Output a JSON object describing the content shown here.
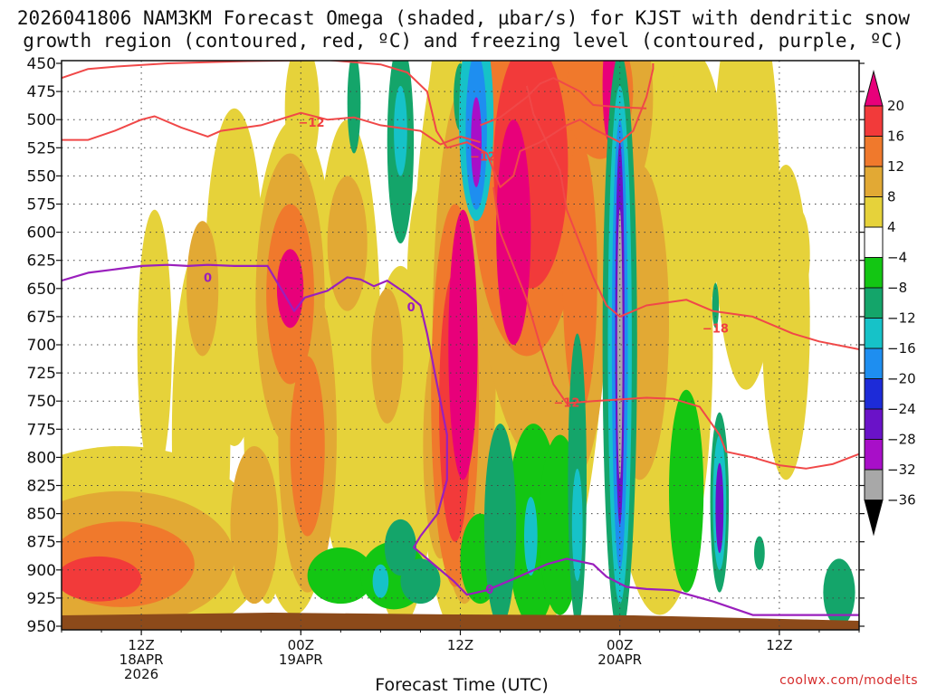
{
  "chart_data": {
    "type": "heatmap",
    "title_line1": "2026041806 NAM3KM Forecast Omega (shaded, µbar/s) for KJST with dendritic snow",
    "title_line2": "growth region (contoured, red, ºC) and freezing level (contoured, purple, ºC)",
    "xlabel": "Forecast Time (UTC)",
    "ylabel": "Pressure (hPa)",
    "credit": "coolwx.com/modelts",
    "y_ticks": [
      "450",
      "475",
      "500",
      "525",
      "550",
      "575",
      "600",
      "625",
      "650",
      "675",
      "700",
      "725",
      "750",
      "775",
      "800",
      "825",
      "850",
      "875",
      "900",
      "925",
      "950"
    ],
    "y_values": [
      450,
      475,
      500,
      525,
      550,
      575,
      600,
      625,
      650,
      675,
      700,
      725,
      750,
      775,
      800,
      825,
      850,
      875,
      900,
      925,
      950
    ],
    "x_range_hours": [
      6,
      66
    ],
    "x_ticks": [
      {
        "hour": 12,
        "label1": "12Z",
        "label2": "18APR",
        "label3": "2026"
      },
      {
        "hour": 24,
        "label1": "00Z",
        "label2": "19APR",
        "label3": ""
      },
      {
        "hour": 36,
        "label1": "12Z",
        "label2": "",
        "label3": ""
      },
      {
        "hour": 48,
        "label1": "00Z",
        "label2": "20APR",
        "label3": ""
      },
      {
        "hour": 60,
        "label1": "12Z",
        "label2": "",
        "label3": ""
      }
    ],
    "colorbar": {
      "labels": [
        "20",
        "16",
        "12",
        "8",
        "4",
        "−4",
        "−8",
        "−12",
        "−16",
        "−20",
        "−24",
        "−28",
        "−32",
        "−36"
      ],
      "colors": [
        "#e8007a",
        "#f23a3a",
        "#f0792c",
        "#e2a934",
        "#e6d23a",
        "#ffffff",
        "#13c613",
        "#14a56a",
        "#16c2c8",
        "#1e8ef0",
        "#1d2bd8",
        "#6a12c8",
        "#a80fc8",
        "#a8a8a8",
        "#000000"
      ]
    },
    "shading_blobs": [
      {
        "t": 8.8,
        "p": 908,
        "rt": 3.2,
        "rp": 20,
        "v": 16
      },
      {
        "t": 10.5,
        "p": 895,
        "rt": 5.5,
        "rp": 38,
        "v": 12
      },
      {
        "t": 10.5,
        "p": 890,
        "rt": 8.5,
        "rp": 60,
        "v": 8
      },
      {
        "t": 10.5,
        "p": 880,
        "rt": 11,
        "rp": 90,
        "v": 4
      },
      {
        "t": 13,
        "p": 700,
        "rt": 1.3,
        "rp": 120,
        "v": 4
      },
      {
        "t": 16.5,
        "p": 780,
        "rt": 2.2,
        "rp": 170,
        "v": 4
      },
      {
        "t": 16.6,
        "p": 650,
        "rt": 1.2,
        "rp": 60,
        "v": 8
      },
      {
        "t": 19,
        "p": 640,
        "rt": 2.2,
        "rp": 150,
        "v": 4
      },
      {
        "t": 20.5,
        "p": 860,
        "rt": 1.8,
        "rp": 70,
        "v": 8
      },
      {
        "t": 21.5,
        "p": 760,
        "rt": 1.8,
        "rp": 170,
        "v": 4
      },
      {
        "t": 23.2,
        "p": 655,
        "rt": 1.8,
        "rp": 80,
        "v": 12
      },
      {
        "t": 23.2,
        "p": 650,
        "rt": 1.0,
        "rp": 35,
        "v": 20
      },
      {
        "t": 23.2,
        "p": 660,
        "rt": 2.6,
        "rp": 130,
        "v": 8
      },
      {
        "t": 23.5,
        "p": 720,
        "rt": 3.5,
        "rp": 220,
        "v": 4
      },
      {
        "t": 24.1,
        "p": 490,
        "rt": 1.3,
        "rp": 60,
        "v": 4
      },
      {
        "t": 24.5,
        "p": 790,
        "rt": 1.3,
        "rp": 80,
        "v": 12
      },
      {
        "t": 24.5,
        "p": 780,
        "rt": 2.2,
        "rp": 140,
        "v": 8
      },
      {
        "t": 27.5,
        "p": 610,
        "rt": 1.5,
        "rp": 60,
        "v": 8
      },
      {
        "t": 27.5,
        "p": 700,
        "rt": 2.5,
        "rp": 200,
        "v": 4
      },
      {
        "t": 28.5,
        "p": 840,
        "rt": 2.0,
        "rp": 80,
        "v": 4
      },
      {
        "t": 31.5,
        "p": 790,
        "rt": 2.5,
        "rp": 160,
        "v": 4
      },
      {
        "t": 30.5,
        "p": 710,
        "rt": 1.2,
        "rp": 60,
        "v": 8
      },
      {
        "t": 33.5,
        "p": 640,
        "rt": 1.5,
        "rp": 90,
        "v": 4
      },
      {
        "t": 34.5,
        "p": 790,
        "rt": 1.3,
        "rp": 100,
        "v": 8
      },
      {
        "t": 35.6,
        "p": 755,
        "rt": 1.2,
        "rp": 120,
        "v": 16
      },
      {
        "t": 35.6,
        "p": 745,
        "rt": 1.8,
        "rp": 170,
        "v": 12
      },
      {
        "t": 36.2,
        "p": 700,
        "rt": 1.1,
        "rp": 120,
        "v": 20
      },
      {
        "t": 36.3,
        "p": 700,
        "rt": 2.4,
        "rp": 230,
        "v": 8
      },
      {
        "t": 36.0,
        "p": 680,
        "rt": 3.6,
        "rp": 280,
        "v": 4
      },
      {
        "t": 39.0,
        "p": 550,
        "rt": 2.0,
        "rp": 100,
        "v": 8
      },
      {
        "t": 40.0,
        "p": 600,
        "rt": 1.3,
        "rp": 100,
        "v": 20
      },
      {
        "t": 41.3,
        "p": 540,
        "rt": 2.8,
        "rp": 110,
        "v": 16
      },
      {
        "t": 41.0,
        "p": 540,
        "rt": 4.2,
        "rp": 170,
        "v": 12
      },
      {
        "t": 42.5,
        "p": 560,
        "rt": 5.5,
        "rp": 250,
        "v": 8
      },
      {
        "t": 40.0,
        "p": 620,
        "rt": 7.0,
        "rp": 360,
        "v": 4
      },
      {
        "t": 44.0,
        "p": 470,
        "rt": 3.5,
        "rp": 40,
        "v": 12
      },
      {
        "t": 46.5,
        "p": 475,
        "rt": 2.5,
        "rp": 60,
        "v": 12
      },
      {
        "t": 46.0,
        "p": 480,
        "rt": 4.5,
        "rp": 120,
        "v": 8
      },
      {
        "t": 47.0,
        "p": 480,
        "rt": 7.5,
        "rp": 220,
        "v": 4
      },
      {
        "t": 47.2,
        "p": 470,
        "rt": 0.5,
        "rp": 50,
        "v": 20
      },
      {
        "t": 45.0,
        "p": 640,
        "rt": 1.3,
        "rp": 120,
        "v": 12
      },
      {
        "t": 44.5,
        "p": 660,
        "rt": 2.5,
        "rp": 160,
        "v": 8
      },
      {
        "t": 49.5,
        "p": 680,
        "rt": 2.2,
        "rp": 140,
        "v": 8
      },
      {
        "t": 51.0,
        "p": 700,
        "rt": 4.0,
        "rp": 240,
        "v": 4
      },
      {
        "t": 53.5,
        "p": 560,
        "rt": 2.5,
        "rp": 120,
        "v": 4
      },
      {
        "t": 57.5,
        "p": 560,
        "rt": 2.5,
        "rp": 180,
        "v": 4
      },
      {
        "t": 60.5,
        "p": 680,
        "rt": 1.8,
        "rp": 140,
        "v": 4
      },
      {
        "t": 61.5,
        "p": 620,
        "rt": 0.8,
        "rp": 40,
        "v": 4
      },
      {
        "t": 38.5,
        "p": 830,
        "rt": 3.5,
        "rp": 90,
        "v": 4
      }
    ],
    "negative_blobs": [
      {
        "t": 27.0,
        "p": 905,
        "rt": 2.5,
        "rp": 25,
        "v": -4
      },
      {
        "t": 31.0,
        "p": 905,
        "rt": 2.5,
        "rp": 30,
        "v": -4
      },
      {
        "t": 30.0,
        "p": 910,
        "rt": 0.6,
        "rp": 15,
        "v": -12
      },
      {
        "t": 31.5,
        "p": 880,
        "rt": 1.2,
        "rp": 25,
        "v": -8
      },
      {
        "t": 33.0,
        "p": 910,
        "rt": 1.5,
        "rp": 20,
        "v": -8
      },
      {
        "t": 37.5,
        "p": 890,
        "rt": 1.5,
        "rp": 40,
        "v": -4
      },
      {
        "t": 39.0,
        "p": 860,
        "rt": 1.2,
        "rp": 90,
        "v": -8
      },
      {
        "t": 41.5,
        "p": 860,
        "rt": 2.0,
        "rp": 90,
        "v": -4
      },
      {
        "t": 41.3,
        "p": 870,
        "rt": 0.5,
        "rp": 35,
        "v": -12
      },
      {
        "t": 43.5,
        "p": 860,
        "rt": 1.6,
        "rp": 80,
        "v": -4
      },
      {
        "t": 44.8,
        "p": 820,
        "rt": 0.7,
        "rp": 130,
        "v": -8
      },
      {
        "t": 44.8,
        "p": 860,
        "rt": 0.4,
        "rp": 50,
        "v": -12
      },
      {
        "t": 48.0,
        "p": 700,
        "rt": 1.3,
        "rp": 260,
        "v": -8
      },
      {
        "t": 48.0,
        "p": 700,
        "rt": 0.9,
        "rp": 230,
        "v": -12
      },
      {
        "t": 48.0,
        "p": 700,
        "rt": 0.6,
        "rp": 200,
        "v": -16
      },
      {
        "t": 48.0,
        "p": 690,
        "rt": 0.35,
        "rp": 170,
        "v": -24
      },
      {
        "t": 48.0,
        "p": 700,
        "rt": 0.2,
        "rp": 120,
        "v": -32
      },
      {
        "t": 53.0,
        "p": 830,
        "rt": 1.3,
        "rp": 90,
        "v": -4
      },
      {
        "t": 55.5,
        "p": 840,
        "rt": 0.7,
        "rp": 80,
        "v": -8
      },
      {
        "t": 55.5,
        "p": 840,
        "rt": 0.5,
        "rp": 60,
        "v": -12
      },
      {
        "t": 55.5,
        "p": 845,
        "rt": 0.3,
        "rp": 40,
        "v": -24
      },
      {
        "t": 55.2,
        "p": 665,
        "rt": 0.25,
        "rp": 20,
        "v": -8
      },
      {
        "t": 58.5,
        "p": 885,
        "rt": 0.4,
        "rp": 15,
        "v": -8
      },
      {
        "t": 64.5,
        "p": 920,
        "rt": 1.2,
        "rp": 30,
        "v": -8
      },
      {
        "t": 31.5,
        "p": 520,
        "rt": 1.0,
        "rp": 90,
        "v": -8
      },
      {
        "t": 31.5,
        "p": 510,
        "rt": 0.5,
        "rp": 40,
        "v": -12
      },
      {
        "t": 28.0,
        "p": 485,
        "rt": 0.5,
        "rp": 45,
        "v": -8
      },
      {
        "t": 37.2,
        "p": 500,
        "rt": 1.3,
        "rp": 90,
        "v": -12
      },
      {
        "t": 37.2,
        "p": 510,
        "rt": 0.8,
        "rp": 70,
        "v": -16
      },
      {
        "t": 37.2,
        "p": 520,
        "rt": 0.4,
        "rp": 40,
        "v": -28
      },
      {
        "t": 36.0,
        "p": 480,
        "rt": 0.5,
        "rp": 30,
        "v": -8
      }
    ],
    "contour_labels": [
      {
        "text": "−12",
        "t": 24.8,
        "p": 503,
        "color": "#f04040"
      },
      {
        "text": "−12",
        "t": 37.7,
        "p": 533,
        "color": "#f04040"
      },
      {
        "text": "−18",
        "t": 55.2,
        "p": 686,
        "color": "#f04040"
      },
      {
        "text": "−12",
        "t": 44.0,
        "p": 752,
        "color": "#f04040"
      },
      {
        "text": "0",
        "t": 17.0,
        "p": 641,
        "color": "#9a1fbd"
      },
      {
        "text": "0",
        "t": 32.3,
        "p": 667,
        "color": "#9a1fbd"
      },
      {
        "text": "0",
        "t": 38.2,
        "p": 918,
        "color": "#9a1fbd"
      }
    ],
    "red_contours": [
      [
        [
          6,
          463
        ],
        [
          8,
          455
        ],
        [
          10,
          453
        ],
        [
          14,
          450
        ],
        [
          20,
          448
        ],
        [
          26,
          447
        ],
        [
          30,
          451
        ],
        [
          32,
          458
        ],
        [
          33.5,
          475
        ],
        [
          34.2,
          510
        ],
        [
          35,
          525
        ],
        [
          36.5,
          520
        ],
        [
          38,
          530
        ],
        [
          38.5,
          545
        ],
        [
          39,
          560
        ],
        [
          40,
          550
        ],
        [
          40.5,
          528
        ],
        [
          42,
          520
        ],
        [
          44,
          505
        ],
        [
          45,
          500
        ],
        [
          46,
          508
        ],
        [
          48,
          520
        ],
        [
          49,
          510
        ],
        [
          50,
          480
        ],
        [
          50.5,
          455
        ],
        [
          50.5,
          450
        ]
      ],
      [
        [
          6,
          518
        ],
        [
          8,
          518
        ],
        [
          10,
          510
        ],
        [
          12,
          500
        ],
        [
          13,
          497
        ],
        [
          15,
          507
        ],
        [
          17,
          515
        ],
        [
          18,
          510
        ],
        [
          21,
          505
        ],
        [
          24,
          494
        ],
        [
          26,
          500
        ],
        [
          28,
          498
        ],
        [
          30,
          505
        ],
        [
          33,
          510
        ],
        [
          34.5,
          522
        ],
        [
          36,
          515
        ],
        [
          37.5,
          520
        ]
      ],
      [
        [
          37.5,
          505
        ],
        [
          39,
          498
        ],
        [
          41,
          480
        ],
        [
          42,
          468
        ],
        [
          43,
          463
        ],
        [
          45,
          475
        ],
        [
          46,
          487
        ],
        [
          48,
          489
        ],
        [
          50,
          490
        ]
      ],
      [
        [
          41,
          470
        ],
        [
          41.5,
          495
        ],
        [
          42.5,
          520
        ],
        [
          43.5,
          545
        ],
        [
          44,
          580
        ],
        [
          45,
          610
        ],
        [
          46,
          640
        ],
        [
          47,
          665
        ],
        [
          48,
          675
        ],
        [
          50,
          665
        ],
        [
          53,
          660
        ],
        [
          55,
          670
        ],
        [
          58,
          675
        ],
        [
          61,
          690
        ],
        [
          63,
          697
        ],
        [
          66,
          704
        ]
      ],
      [
        [
          38.5,
          560
        ],
        [
          39,
          600
        ],
        [
          40,
          630
        ],
        [
          41,
          660
        ],
        [
          42,
          700
        ],
        [
          43,
          735
        ],
        [
          44,
          752
        ],
        [
          46,
          750
        ],
        [
          50,
          747
        ],
        [
          52,
          748
        ],
        [
          54,
          755
        ],
        [
          55.5,
          780
        ],
        [
          56,
          795
        ],
        [
          58,
          800
        ],
        [
          60,
          807
        ],
        [
          62,
          810
        ],
        [
          64,
          806
        ],
        [
          66,
          797
        ]
      ]
    ],
    "purple_contours": [
      [
        [
          6,
          643
        ],
        [
          8,
          636
        ],
        [
          10,
          633
        ],
        [
          12,
          630
        ],
        [
          14,
          629
        ],
        [
          15.5,
          630
        ],
        [
          17,
          629
        ],
        [
          19,
          630
        ],
        [
          21.5,
          630
        ],
        [
          22,
          640
        ],
        [
          23,
          660
        ],
        [
          23.5,
          670
        ],
        [
          24.3,
          658
        ],
        [
          26,
          652
        ],
        [
          27.5,
          640
        ],
        [
          28.5,
          642
        ],
        [
          29.5,
          648
        ],
        [
          30.5,
          643
        ],
        [
          32,
          655
        ],
        [
          33,
          665
        ],
        [
          33.5,
          690
        ],
        [
          34,
          720
        ],
        [
          34.5,
          750
        ],
        [
          35,
          780
        ],
        [
          35,
          820
        ],
        [
          34.3,
          850
        ],
        [
          33,
          870
        ],
        [
          32.5,
          880
        ],
        [
          34,
          895
        ],
        [
          35.5,
          910
        ],
        [
          36.5,
          922
        ],
        [
          38,
          918
        ],
        [
          40,
          908
        ],
        [
          42.5,
          895
        ],
        [
          44,
          890
        ],
        [
          46,
          895
        ],
        [
          47,
          906
        ],
        [
          48.5,
          915
        ],
        [
          50,
          917
        ],
        [
          52,
          918
        ],
        [
          55,
          928
        ],
        [
          58,
          940
        ],
        [
          62,
          940
        ],
        [
          66,
          940
        ]
      ]
    ]
  }
}
